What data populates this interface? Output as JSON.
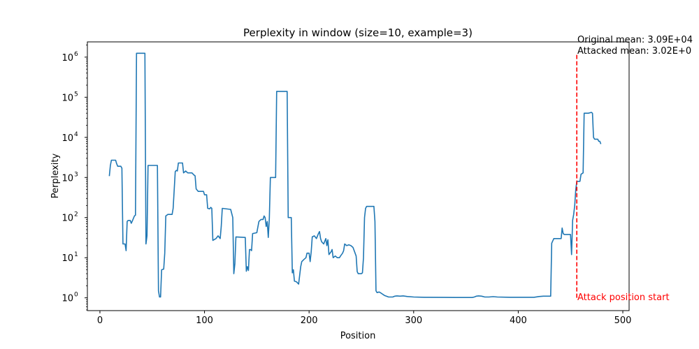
{
  "chart_data": {
    "type": "line",
    "title": "Perplexity in window (size=10, example=3)",
    "xlabel": "Position",
    "ylabel": "Perplexity",
    "xlim": [
      -12,
      506
    ],
    "ylim": [
      0.48,
      2400000
    ],
    "yscale": "log",
    "grid": false,
    "x_ticks": [
      0,
      100,
      200,
      300,
      400,
      500
    ],
    "x_tick_labels": [
      "0",
      "100",
      "200",
      "300",
      "400",
      "500"
    ],
    "y_ticks": [
      1,
      10,
      100,
      1000,
      10000,
      100000,
      1000000
    ],
    "y_tick_exponents": [
      "0",
      "1",
      "2",
      "3",
      "4",
      "5",
      "6"
    ],
    "series": [
      {
        "color": "#1f77b4",
        "points": [
          [
            9,
            1080
          ],
          [
            10,
            2000
          ],
          [
            11,
            2700
          ],
          [
            15,
            2700
          ],
          [
            16,
            2200
          ],
          [
            17,
            1900
          ],
          [
            20,
            1900
          ],
          [
            21,
            1700
          ],
          [
            22,
            22
          ],
          [
            24,
            22
          ],
          [
            25,
            15
          ],
          [
            26,
            80
          ],
          [
            27,
            85
          ],
          [
            29,
            85
          ],
          [
            30,
            72
          ],
          [
            31,
            82
          ],
          [
            32,
            95
          ],
          [
            33,
            110
          ],
          [
            34,
            115
          ],
          [
            35,
            1250000
          ],
          [
            43,
            1250000
          ],
          [
            44,
            22
          ],
          [
            45,
            35
          ],
          [
            46,
            2000
          ],
          [
            55,
            2000
          ],
          [
            56,
            1.5
          ],
          [
            57,
            1.05
          ],
          [
            58,
            1.05
          ],
          [
            59,
            5
          ],
          [
            61,
            5.2
          ],
          [
            62,
            13
          ],
          [
            63,
            110
          ],
          [
            65,
            120
          ],
          [
            69,
            120
          ],
          [
            70,
            170
          ],
          [
            72,
            1400
          ],
          [
            73,
            1500
          ],
          [
            74,
            1450
          ],
          [
            75,
            2300
          ],
          [
            79,
            2300
          ],
          [
            80,
            1300
          ],
          [
            82,
            1450
          ],
          [
            84,
            1300
          ],
          [
            88,
            1300
          ],
          [
            90,
            1150
          ],
          [
            91,
            1100
          ],
          [
            92,
            520
          ],
          [
            94,
            450
          ],
          [
            96,
            450
          ],
          [
            99,
            450
          ],
          [
            100,
            370
          ],
          [
            102,
            370
          ],
          [
            103,
            170
          ],
          [
            105,
            165
          ],
          [
            106,
            180
          ],
          [
            107,
            170
          ],
          [
            108,
            27
          ],
          [
            109,
            28
          ],
          [
            111,
            30
          ],
          [
            113,
            35
          ],
          [
            115,
            30
          ],
          [
            116,
            60
          ],
          [
            117,
            170
          ],
          [
            125,
            160
          ],
          [
            127,
            100
          ],
          [
            128,
            4
          ],
          [
            129,
            7
          ],
          [
            130,
            33
          ],
          [
            139,
            32
          ],
          [
            140,
            4.6
          ],
          [
            141,
            6
          ],
          [
            142,
            4.8
          ],
          [
            143,
            16
          ],
          [
            144,
            16
          ],
          [
            145,
            15
          ],
          [
            146,
            40
          ],
          [
            150,
            42
          ],
          [
            152,
            80
          ],
          [
            154,
            90
          ],
          [
            156,
            90
          ],
          [
            157,
            110
          ],
          [
            158,
            100
          ],
          [
            159,
            60
          ],
          [
            160,
            80
          ],
          [
            161,
            32
          ],
          [
            162,
            95
          ],
          [
            163,
            1000
          ],
          [
            168,
            1000
          ],
          [
            169,
            140000
          ],
          [
            179,
            140000
          ],
          [
            180,
            100
          ],
          [
            181,
            100
          ],
          [
            183,
            100
          ],
          [
            184,
            4.2
          ],
          [
            185,
            5
          ],
          [
            186,
            2.6
          ],
          [
            188,
            2.5
          ],
          [
            190,
            2.2
          ],
          [
            192,
            6
          ],
          [
            193,
            8
          ],
          [
            195,
            9
          ],
          [
            197,
            10
          ],
          [
            198,
            13
          ],
          [
            200,
            13
          ],
          [
            201,
            8
          ],
          [
            202,
            14
          ],
          [
            203,
            33
          ],
          [
            205,
            35
          ],
          [
            207,
            30
          ],
          [
            209,
            40
          ],
          [
            210,
            45
          ],
          [
            211,
            30
          ],
          [
            212,
            25
          ],
          [
            214,
            22
          ],
          [
            216,
            30
          ],
          [
            217,
            20
          ],
          [
            218,
            28
          ],
          [
            219,
            12
          ],
          [
            221,
            14
          ],
          [
            222,
            16
          ],
          [
            223,
            10
          ],
          [
            225,
            11
          ],
          [
            227,
            10
          ],
          [
            229,
            10
          ],
          [
            230,
            11
          ],
          [
            232,
            13
          ],
          [
            233,
            15
          ],
          [
            234,
            22
          ],
          [
            236,
            20
          ],
          [
            238,
            21
          ],
          [
            240,
            20
          ],
          [
            242,
            18
          ],
          [
            244,
            13
          ],
          [
            245,
            11
          ],
          [
            246,
            4.5
          ],
          [
            247,
            4
          ],
          [
            250,
            4
          ],
          [
            251,
            4.2
          ],
          [
            252,
            10
          ],
          [
            253,
            100
          ],
          [
            254,
            170
          ],
          [
            255,
            190
          ],
          [
            258,
            190
          ],
          [
            262,
            190
          ],
          [
            263,
            80
          ],
          [
            264,
            1.5
          ],
          [
            265,
            1.35
          ],
          [
            267,
            1.4
          ],
          [
            269,
            1.3
          ],
          [
            272,
            1.15
          ],
          [
            276,
            1.05
          ],
          [
            280,
            1.05
          ],
          [
            282,
            1.1
          ],
          [
            284,
            1.12
          ],
          [
            287,
            1.1
          ],
          [
            290,
            1.12
          ],
          [
            294,
            1.08
          ],
          [
            300,
            1.05
          ],
          [
            310,
            1.03
          ],
          [
            340,
            1.02
          ],
          [
            356,
            1.02
          ],
          [
            358,
            1.05
          ],
          [
            360,
            1.1
          ],
          [
            362,
            1.12
          ],
          [
            365,
            1.1
          ],
          [
            368,
            1.05
          ],
          [
            372,
            1.05
          ],
          [
            376,
            1.07
          ],
          [
            380,
            1.05
          ],
          [
            392,
            1.03
          ],
          [
            415,
            1.03
          ],
          [
            420,
            1.08
          ],
          [
            424,
            1.1
          ],
          [
            431,
            1.1
          ],
          [
            432,
            23
          ],
          [
            434,
            30
          ],
          [
            441,
            30
          ],
          [
            442,
            55
          ],
          [
            443,
            40
          ],
          [
            444,
            38
          ],
          [
            450,
            38
          ],
          [
            451,
            12
          ],
          [
            452,
            85
          ],
          [
            453,
            120
          ],
          [
            454,
            200
          ],
          [
            455,
            500
          ],
          [
            456,
            800
          ],
          [
            459,
            800
          ],
          [
            460,
            1200
          ],
          [
            462,
            1300
          ],
          [
            463,
            40000
          ],
          [
            467,
            40000
          ],
          [
            470,
            42000
          ],
          [
            471,
            40000
          ],
          [
            472,
            10000
          ],
          [
            473,
            9000
          ],
          [
            476,
            9000
          ],
          [
            477,
            8000
          ],
          [
            478,
            8000
          ],
          [
            479,
            6800
          ]
        ]
      }
    ],
    "attack_marker": {
      "x": 456,
      "y_range": [
        1,
        1250000
      ],
      "color": "#ff0000",
      "label": "Attack position start"
    },
    "annotations": [
      "Original mean: 3.09E+04",
      "Attacked mean: 3.02E+0"
    ]
  }
}
